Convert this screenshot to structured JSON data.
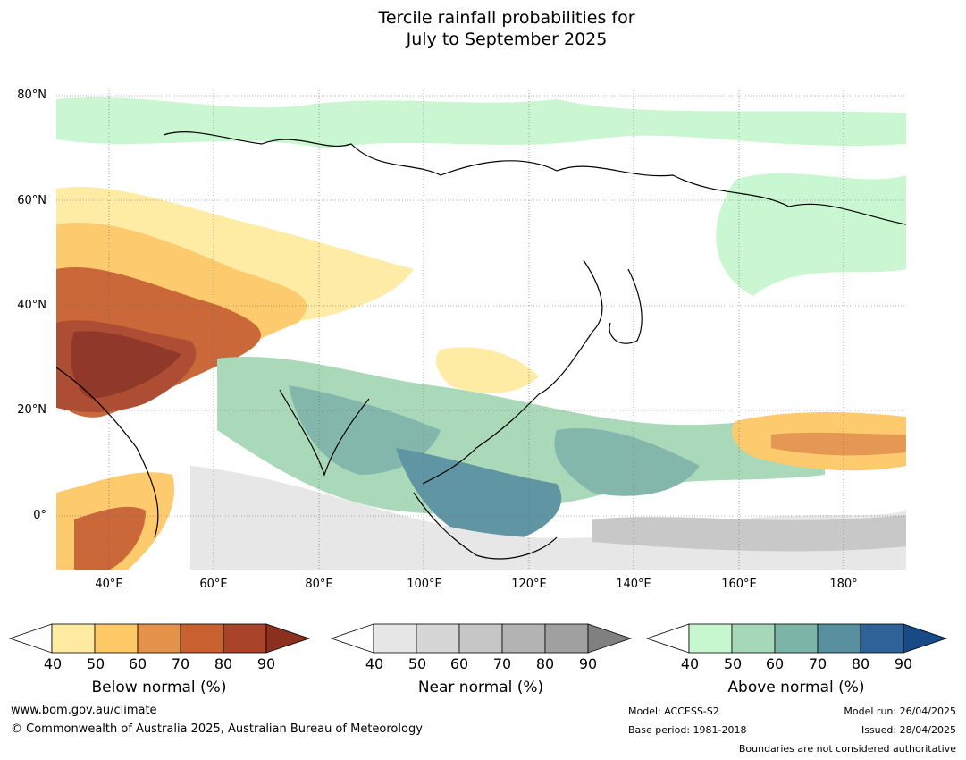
{
  "title": {
    "line1": "Tercile rainfall probabilities for",
    "line2": "July to September 2025"
  },
  "map": {
    "lat_labels": [
      "80°N",
      "60°N",
      "40°N",
      "20°N",
      "0°"
    ],
    "lon_labels": [
      "40°E",
      "60°E",
      "80°E",
      "100°E",
      "120°E",
      "140°E",
      "160°E",
      "180°"
    ],
    "extent": {
      "lon": [
        30,
        192
      ],
      "lat": [
        -10,
        81
      ]
    }
  },
  "colorbars": [
    {
      "title": "Below normal (%)",
      "ticks": [
        "40",
        "50",
        "60",
        "70",
        "80",
        "90"
      ],
      "colors": [
        "#ffffff",
        "#feeaa0",
        "#fdc866",
        "#e3934a",
        "#c8602f",
        "#a9442a",
        "#8b2f1f"
      ]
    },
    {
      "title": "Near normal (%)",
      "ticks": [
        "40",
        "50",
        "60",
        "70",
        "80",
        "90"
      ],
      "colors": [
        "#ffffff",
        "#e6e6e6",
        "#d6d6d6",
        "#c6c6c6",
        "#b3b3b3",
        "#a0a0a0",
        "#808080"
      ]
    },
    {
      "title": "Above normal (%)",
      "ticks": [
        "40",
        "50",
        "60",
        "70",
        "80",
        "90"
      ],
      "colors": [
        "#ffffff",
        "#c7f7cf",
        "#a6d7b6",
        "#7db4a8",
        "#5890a0",
        "#2f6397",
        "#174a86"
      ]
    }
  ],
  "footer": {
    "website": "www.bom.gov.au/climate",
    "copyright": "© Commonwealth of Australia 2025, Australian Bureau of Meteorology",
    "model": "Model: ACCESS-S2",
    "base_period": "Base period: 1981-2018",
    "model_run": "Model run: 26/04/2025",
    "issued": "Issued: 28/04/2025",
    "boundaries_note": "Boundaries are not considered authoritative"
  }
}
